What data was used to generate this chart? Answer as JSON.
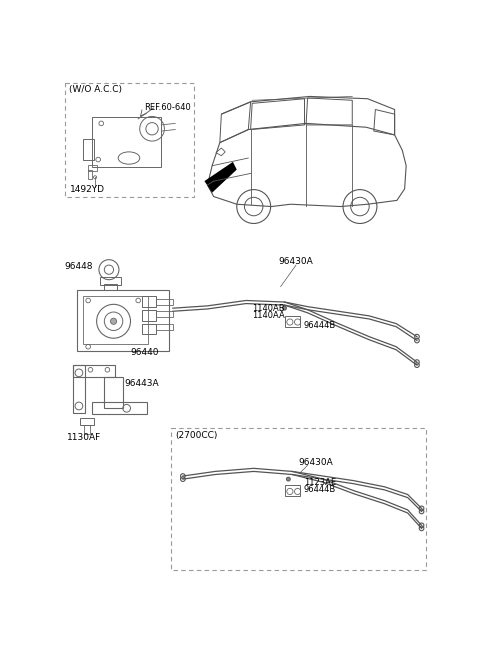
{
  "background_color": "#ffffff",
  "fig_width": 4.8,
  "fig_height": 6.56,
  "dpi": 100,
  "labels": {
    "wo_acc": "(W/O A.C.C)",
    "ref_60_640": "REF.60-640",
    "part_1492YD": "1492YD",
    "part_96448": "96448",
    "part_96440": "96440",
    "part_96443A": "96443A",
    "part_1130AF": "1130AF",
    "part_96430A_main": "96430A",
    "part_1140AB": "1140AB",
    "part_1140AA": "1140AA",
    "part_96444B_main": "96444B",
    "inset_2700CC": "(2700CC)",
    "part_96430A_inset": "96430A",
    "part_1123AE": "1123AE",
    "part_96444B_inset": "96444B"
  },
  "line_color": "#555555",
  "text_color": "#000000",
  "dashed_box_color": "#999999"
}
